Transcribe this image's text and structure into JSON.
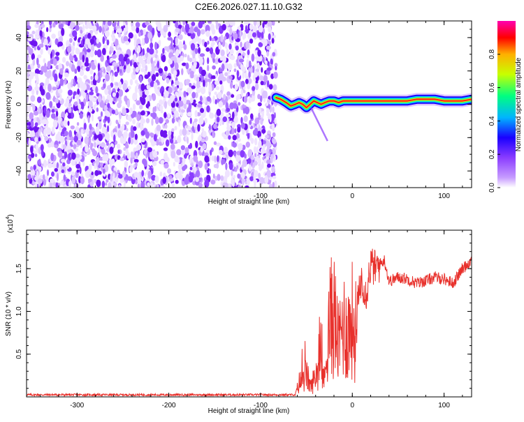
{
  "title": "C2E6.2026.027.11.10.G32",
  "chart_data": [
    {
      "type": "heatmap",
      "name": "spectrogram",
      "xlabel": "Height of straight line (km)",
      "ylabel": "Frequency (Hz)",
      "xlim": [
        -355,
        130
      ],
      "ylim": [
        -50,
        50
      ],
      "xticks": [
        -300,
        -200,
        -100,
        0,
        100
      ],
      "yticks": [
        -40,
        -20,
        0,
        20,
        40
      ],
      "noise_region_x": [
        -355,
        -83
      ],
      "signal_start_x": -83,
      "signal_track": {
        "x": [
          -83,
          -78,
          -72,
          -67,
          -62,
          -58,
          -54,
          -50,
          -46,
          -42,
          -38,
          -34,
          -30,
          -25,
          -20,
          -15,
          -10,
          -5,
          0,
          10,
          20,
          30,
          40,
          50,
          60,
          70,
          80,
          90,
          100,
          110,
          120,
          130
        ],
        "freq": [
          4,
          3,
          1,
          -1,
          0,
          1,
          0,
          -2,
          0,
          2,
          1,
          0,
          1,
          2,
          2,
          1,
          2,
          2,
          2,
          2,
          2,
          2,
          2,
          2,
          2,
          3,
          3,
          3,
          2,
          2,
          2,
          3
        ]
      },
      "colorbar": {
        "label": "Normalized spectral amplitude",
        "range": [
          0,
          1
        ],
        "ticks": [
          "0.0",
          "0.2",
          "0.4",
          "0.6",
          "0.8"
        ],
        "tick_values": [
          0,
          0.2,
          0.4,
          0.6,
          0.8
        ],
        "colors": [
          "#ffffff",
          "#9a55ff",
          "#1a00ff",
          "#00b4ff",
          "#00ff80",
          "#c8ff00",
          "#ffb000",
          "#ff0000",
          "#ff00b0"
        ]
      }
    },
    {
      "type": "line",
      "name": "snr",
      "xlabel": "Height of straight line (km)",
      "ylabel": "SNR (10 * v/v)",
      "scale_label": "(x10",
      "scale_exponent": "4",
      "scale_suffix": ")",
      "xlim": [
        -355,
        130
      ],
      "ylim": [
        0,
        1.95
      ],
      "yticks": [
        0.5,
        1.0,
        1.5
      ],
      "ytick_labels": [
        "0.5",
        "1.0",
        "1.5"
      ],
      "xticks": [
        -300,
        -200,
        -100,
        0,
        100
      ],
      "color": "#e8302b",
      "series_outline": {
        "x": [
          -355,
          -100,
          -62,
          -58,
          -50,
          -45,
          -40,
          -35,
          -30,
          -27,
          -24,
          -20,
          -15,
          -10,
          -5,
          0,
          5,
          10,
          15,
          20,
          25,
          30,
          35,
          40,
          50,
          60,
          70,
          80,
          90,
          100,
          110,
          120,
          130
        ],
        "y": [
          0.02,
          0.02,
          0.03,
          0.22,
          0.35,
          0.15,
          0.35,
          0.5,
          0.25,
          1.0,
          1.2,
          1.3,
          0.8,
          1.15,
          1.0,
          1.2,
          1.0,
          1.4,
          1.2,
          1.55,
          1.5,
          1.55,
          1.6,
          1.35,
          1.4,
          1.38,
          1.33,
          1.36,
          1.4,
          1.38,
          1.33,
          1.5,
          1.6
        ]
      }
    }
  ]
}
